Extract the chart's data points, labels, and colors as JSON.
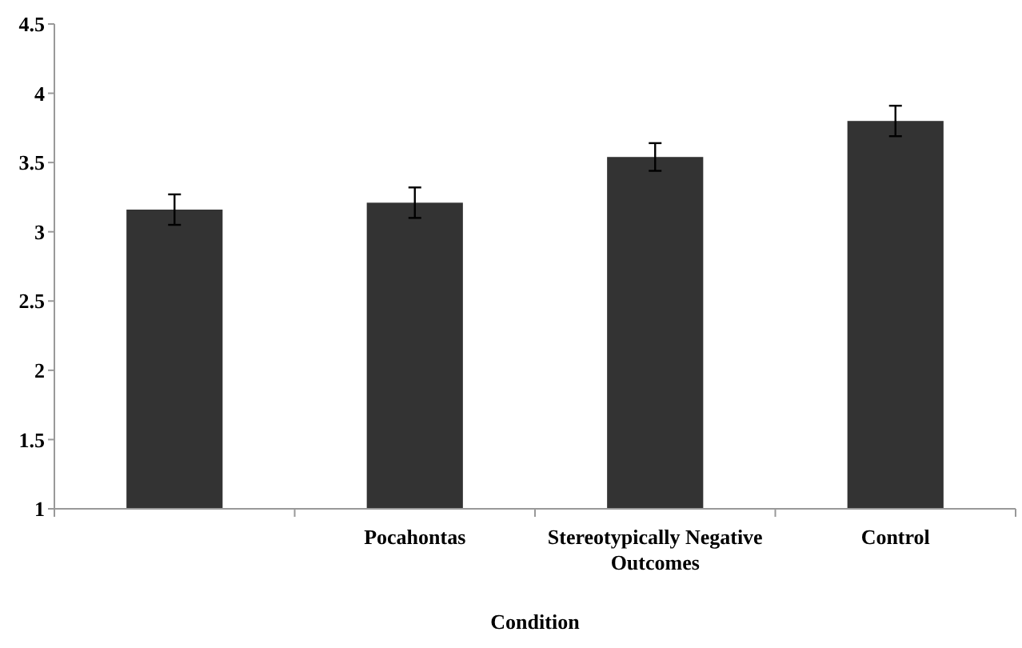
{
  "chart_data": {
    "type": "bar",
    "xlabel": "Condition",
    "categories": [
      null,
      "Pocahontas",
      "Stereotypically Negative Outcomes",
      "Control"
    ],
    "values": [
      3.16,
      3.21,
      3.54,
      3.8
    ],
    "errors": [
      0.11,
      0.11,
      0.1,
      0.11
    ],
    "color": "#333333",
    "ylim": [
      1,
      4.5
    ],
    "yticks": [
      1,
      1.5,
      2,
      2.5,
      3,
      3.5,
      4,
      4.5
    ],
    "grid": false
  }
}
